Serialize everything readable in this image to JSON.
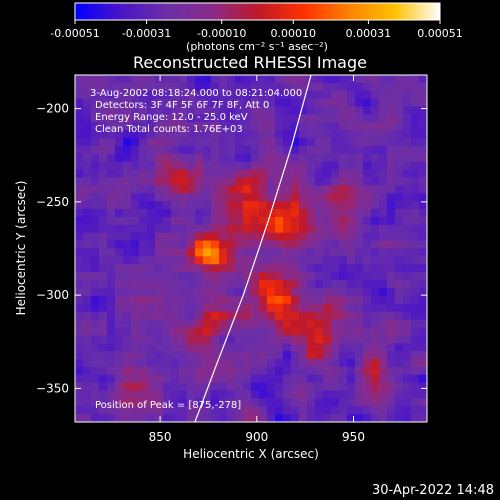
{
  "chart_data": {
    "type": "heatmap",
    "title": "Reconstructed RHESSI Image",
    "xlabel": "Heliocentric X (arcsec)",
    "ylabel": "Heliocentric Y (arcsec)",
    "xlim": [
      806,
      988
    ],
    "ylim": [
      -368,
      -182
    ],
    "xticks": [
      {
        "value": 850,
        "label": "850"
      },
      {
        "value": 900,
        "label": "900"
      },
      {
        "value": 950,
        "label": "950"
      }
    ],
    "yticks": [
      {
        "value": -200,
        "label": "−200"
      },
      {
        "value": -250,
        "label": "−250"
      },
      {
        "value": -300,
        "label": "−300"
      },
      {
        "value": -350,
        "label": "−350"
      }
    ],
    "annotations": {
      "time": "3-Aug-2002 08:18:24.000 to 08:21:04.000",
      "detectors": "Detectors: 3F 4F 5F 6F 7F 8F, Att 0",
      "energy": "Energy Range: 12.0 - 25.0 keV",
      "clean": "Clean     Total counts: 1.76E+03",
      "peak": "Position of Peak = [875,-278]"
    },
    "peak": {
      "x": 875,
      "y": -278
    },
    "limb_points": [
      [
        868,
        -368
      ],
      [
        880,
        -335
      ],
      [
        893,
        -300
      ],
      [
        906,
        -260
      ],
      [
        918,
        -220
      ],
      [
        928,
        -182
      ]
    ],
    "colorbar": {
      "range": [
        -0.00051,
        0.00051
      ],
      "tick_values": [
        -0.00051,
        -0.00031,
        -0.0001,
        0.0001,
        0.00031,
        0.00051
      ],
      "tick_labels": [
        "-0.00051",
        "-0.00031",
        "-0.00010",
        "0.00010",
        "0.00031",
        "0.00051"
      ],
      "units": "(photons cm⁻² s⁻¹ asec⁻²)",
      "colors": [
        "#0000ff",
        "#4a14c8",
        "#6a2fa8",
        "#8a2b8a",
        "#c0192a",
        "#ff3000",
        "#ff8000",
        "#ffc000",
        "#ffffff"
      ]
    },
    "sources": [
      {
        "x": 875,
        "y": -278,
        "amp": 1.0,
        "sigma": 7
      },
      {
        "x": 918,
        "y": -262,
        "amp": 0.85,
        "sigma": 9
      },
      {
        "x": 910,
        "y": -302,
        "amp": 0.7,
        "sigma": 10
      },
      {
        "x": 895,
        "y": -250,
        "amp": 0.55,
        "sigma": 12
      },
      {
        "x": 858,
        "y": -235,
        "amp": 0.45,
        "sigma": 10
      },
      {
        "x": 930,
        "y": -320,
        "amp": 0.5,
        "sigma": 10
      },
      {
        "x": 880,
        "y": -320,
        "amp": 0.45,
        "sigma": 12
      },
      {
        "x": 840,
        "y": -300,
        "amp": 0.35,
        "sigma": 10
      },
      {
        "x": 950,
        "y": -255,
        "amp": 0.4,
        "sigma": 9
      },
      {
        "x": 835,
        "y": -350,
        "amp": 0.35,
        "sigma": 9
      },
      {
        "x": 960,
        "y": -340,
        "amp": 0.35,
        "sigma": 9
      }
    ]
  },
  "footer": {
    "datetime": "30-Apr-2022 14:48"
  }
}
